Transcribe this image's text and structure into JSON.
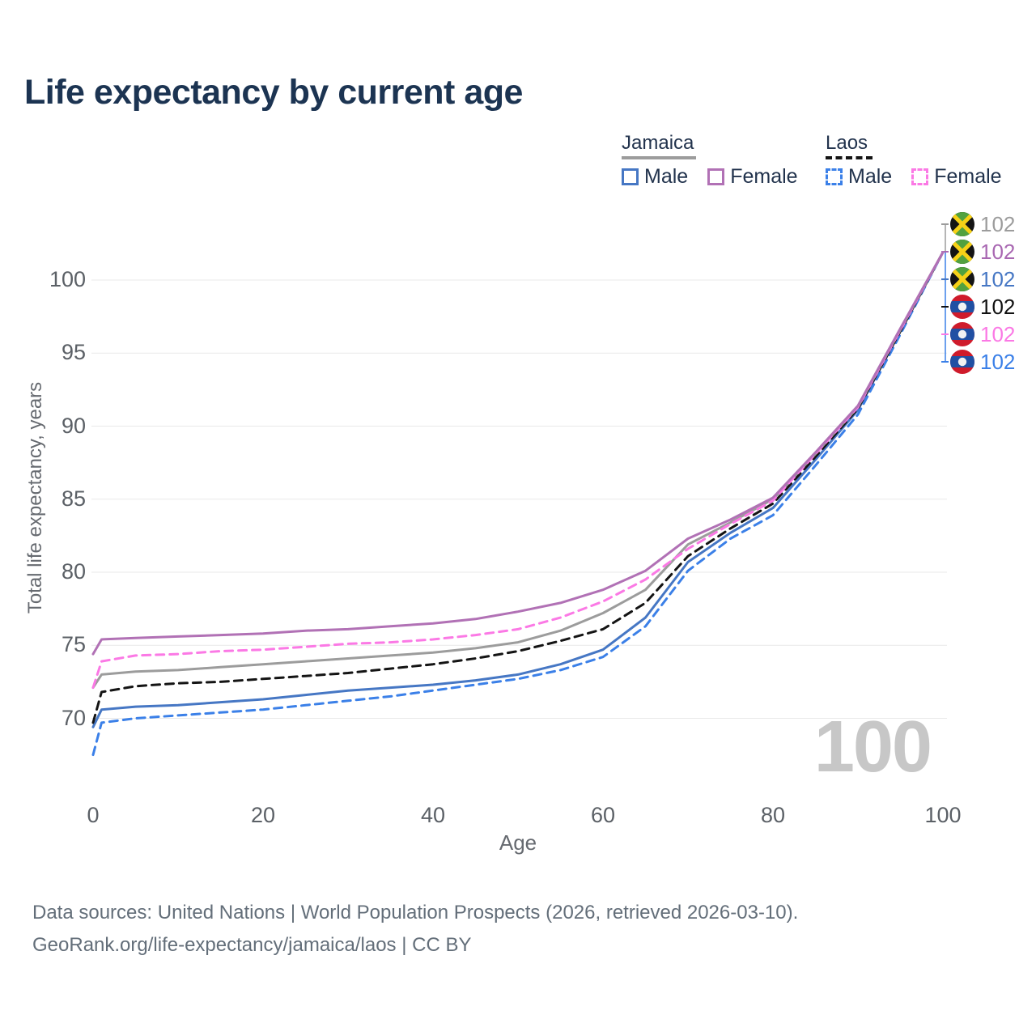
{
  "title": "Life expectancy by current age",
  "colors": {
    "title": "#1c3452",
    "legend_text": "#22334d",
    "tick_text": "#5b6066",
    "axis_text": "#666a70",
    "grid": "#e9e9e9",
    "watermark": "#c7c7c7",
    "source_text": "#636e79",
    "leader_top": "#9c9c9c",
    "leader_bottom": "#3b80e8"
  },
  "legend": {
    "groups": [
      {
        "name": "Jamaica",
        "style": "solid",
        "underline_color": "#9c9c9c",
        "items": [
          {
            "label": "Male",
            "color": "#4677c4",
            "dashed": false
          },
          {
            "label": "Female",
            "color": "#b171b5",
            "dashed": false
          }
        ]
      },
      {
        "name": "Laos",
        "style": "dashed",
        "underline_color": "#141414",
        "items": [
          {
            "label": "Male",
            "color": "#3b80e8",
            "dashed": true
          },
          {
            "label": "Female",
            "color": "#fb79e5",
            "dashed": true
          }
        ]
      }
    ]
  },
  "chart_data": {
    "type": "line",
    "title": "Life expectancy by current age",
    "xlabel": "Age",
    "ylabel": "Total life expectancy, years",
    "xlim": [
      0,
      100
    ],
    "ylim": [
      67,
      103
    ],
    "xticks": [
      0,
      20,
      40,
      60,
      80,
      100
    ],
    "yticks": [
      70,
      75,
      80,
      85,
      90,
      95,
      100
    ],
    "grid": "horizontal",
    "x": [
      0,
      1,
      5,
      10,
      15,
      20,
      25,
      30,
      35,
      40,
      45,
      50,
      55,
      60,
      65,
      70,
      75,
      80,
      85,
      90,
      95,
      100
    ],
    "series": [
      {
        "name": "Laos Male",
        "country": "Laos",
        "sex": "male",
        "color": "#3b80e8",
        "dash": true,
        "values": [
          67.5,
          69.7,
          70.0,
          70.2,
          70.4,
          70.6,
          70.9,
          71.2,
          71.5,
          71.9,
          72.3,
          72.7,
          73.3,
          74.2,
          76.3,
          80.1,
          82.3,
          83.9,
          87.3,
          90.8,
          96.3,
          101.9
        ]
      },
      {
        "name": "Jamaica Male",
        "country": "Jamaica",
        "sex": "male",
        "color": "#4677c4",
        "dash": false,
        "values": [
          69.4,
          70.6,
          70.8,
          70.9,
          71.1,
          71.3,
          71.6,
          71.9,
          72.1,
          72.3,
          72.6,
          73.0,
          73.7,
          74.7,
          76.9,
          80.7,
          82.7,
          84.4,
          87.7,
          91.1,
          96.5,
          101.9
        ]
      },
      {
        "name": "Laos Total",
        "country": "Laos",
        "sex": "both",
        "color": "#141414",
        "dash": true,
        "values": [
          69.7,
          71.8,
          72.2,
          72.4,
          72.5,
          72.7,
          72.9,
          73.1,
          73.4,
          73.7,
          74.1,
          74.6,
          75.3,
          76.1,
          77.9,
          81.1,
          83.0,
          84.7,
          87.9,
          91.2,
          96.5,
          101.9
        ]
      },
      {
        "name": "Jamaica Total",
        "country": "Jamaica",
        "sex": "both",
        "color": "#9c9c9c",
        "dash": false,
        "values": [
          72.1,
          73.0,
          73.2,
          73.3,
          73.5,
          73.7,
          73.9,
          74.1,
          74.3,
          74.5,
          74.8,
          75.2,
          76.0,
          77.2,
          78.8,
          81.9,
          83.4,
          85.0,
          88.1,
          91.3,
          96.6,
          101.9
        ]
      },
      {
        "name": "Laos Female",
        "country": "Laos",
        "sex": "female",
        "color": "#fb79e5",
        "dash": true,
        "values": [
          72.1,
          73.9,
          74.3,
          74.4,
          74.6,
          74.7,
          74.9,
          75.1,
          75.2,
          75.4,
          75.7,
          76.1,
          76.9,
          78.0,
          79.5,
          81.6,
          83.3,
          84.9,
          88.1,
          91.3,
          96.6,
          101.9
        ]
      },
      {
        "name": "Jamaica Female",
        "country": "Jamaica",
        "sex": "female",
        "color": "#b171b5",
        "dash": false,
        "values": [
          74.4,
          75.4,
          75.5,
          75.6,
          75.7,
          75.8,
          76.0,
          76.1,
          76.3,
          76.5,
          76.8,
          77.3,
          77.9,
          78.8,
          80.1,
          82.3,
          83.6,
          85.1,
          88.2,
          91.4,
          96.7,
          101.9
        ]
      }
    ]
  },
  "endpoint_labels": [
    {
      "flag": "jamaica",
      "series": "Jamaica Total",
      "value": "102",
      "color": "#9c9c9c"
    },
    {
      "flag": "jamaica",
      "series": "Jamaica Female",
      "value": "102",
      "color": "#a968b2"
    },
    {
      "flag": "jamaica",
      "series": "Jamaica Male",
      "value": "102",
      "color": "#4677c4"
    },
    {
      "flag": "laos",
      "series": "Laos Total",
      "value": "102",
      "color": "#111111"
    },
    {
      "flag": "laos",
      "series": "Laos Female",
      "value": "102",
      "color": "#fb79e5"
    },
    {
      "flag": "laos",
      "series": "Laos Male",
      "value": "102",
      "color": "#3b80e8"
    }
  ],
  "watermark": "100",
  "source": {
    "line1": "Data sources: United Nations | World Population Prospects (2026, retrieved 2026-03-10).",
    "line2": "GeoRank.org/life-expectancy/jamaica/laos | CC BY"
  }
}
